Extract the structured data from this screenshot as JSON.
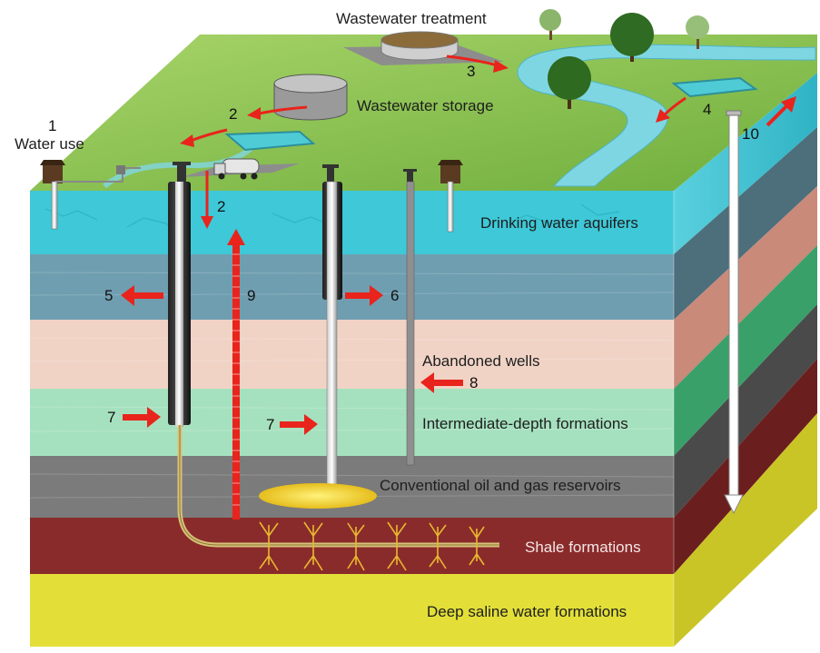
{
  "labels": {
    "water_use": "Water use",
    "wastewater_treatment": "Wastewater treatment",
    "wastewater_storage": "Wastewater storage",
    "drinking_water_aquifers": "Drinking water aquifers",
    "abandoned_wells": "Abandoned wells",
    "intermediate_depth": "Intermediate-depth formations",
    "conventional_reservoirs": "Conventional oil and gas reservoirs",
    "shale_formations": "Shale formations",
    "deep_saline": "Deep saline water formations"
  },
  "steps": {
    "s1": "1",
    "s2a": "2",
    "s2b": "2",
    "s3": "3",
    "s4": "4",
    "s5": "5",
    "s6": "6",
    "s7a": "7",
    "s7b": "7",
    "s8": "8",
    "s9": "9",
    "s10": "10"
  },
  "colors": {
    "arrow": "#e8241c",
    "surface_grass": "#8cc152",
    "river": "#7fd3e0",
    "aquifer": "#3fc7d6",
    "upper_slate": "#6f9fb0",
    "pink": "#f0d4c8",
    "mint": "#a5e2bf",
    "gray": "#7d7d7d",
    "shale": "#8b2a2a",
    "deep_saline": "#e2df3a",
    "gas": "#f2d338"
  }
}
